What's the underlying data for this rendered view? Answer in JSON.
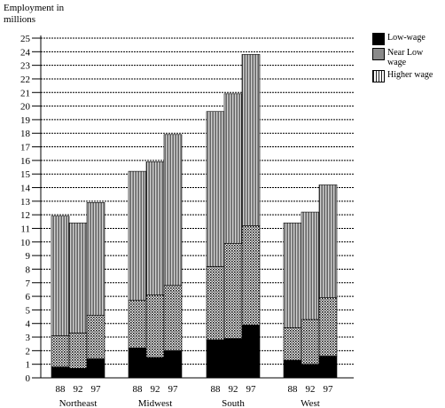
{
  "chart_data": {
    "type": "bar",
    "stacked": true,
    "ylabel": "Employment in millions",
    "yticks": [
      0,
      1,
      2,
      3,
      4,
      5,
      6,
      7,
      8,
      9,
      10,
      11,
      12,
      13,
      14,
      15,
      16,
      17,
      18,
      19,
      20,
      21,
      22,
      23,
      24,
      25
    ],
    "ylim": [
      0,
      25
    ],
    "grid": true,
    "legend_position": "right",
    "groups": [
      {
        "name": "Northeast",
        "years": [
          "88",
          "92",
          "97"
        ]
      },
      {
        "name": "Midwest",
        "years": [
          "88",
          "92",
          "97"
        ]
      },
      {
        "name": "South",
        "years": [
          "88",
          "92",
          "97"
        ]
      },
      {
        "name": "West",
        "years": [
          "88",
          "92",
          "97"
        ]
      }
    ],
    "series": [
      {
        "name": "Low-wage",
        "color": "#000000",
        "values": [
          [
            0.8,
            0.7,
            1.4
          ],
          [
            2.2,
            1.5,
            2.0
          ],
          [
            2.8,
            2.9,
            3.9
          ],
          [
            1.3,
            1.0,
            1.6
          ]
        ]
      },
      {
        "name": "Near Low wage",
        "color": "#888888",
        "values": [
          [
            2.3,
            2.6,
            3.2
          ],
          [
            3.5,
            4.6,
            4.8
          ],
          [
            5.4,
            7.0,
            7.3
          ],
          [
            2.4,
            3.3,
            4.3
          ]
        ]
      },
      {
        "name": "Higher wage",
        "color": "#bbbbbb",
        "values": [
          [
            8.8,
            8.1,
            8.3
          ],
          [
            9.5,
            9.8,
            11.1
          ],
          [
            11.4,
            11.0,
            12.6
          ],
          [
            7.7,
            7.9,
            8.3
          ]
        ]
      }
    ]
  }
}
